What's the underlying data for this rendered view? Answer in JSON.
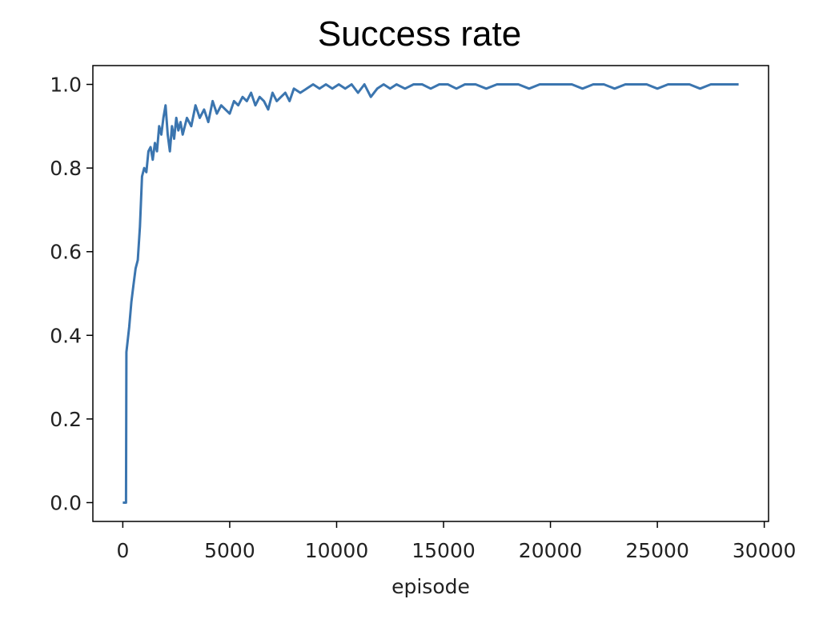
{
  "chart_data": {
    "type": "line",
    "title": "Success rate",
    "xlabel": "episode",
    "ylabel": "",
    "xlim": [
      -1400,
      30200
    ],
    "ylim": [
      -0.045,
      1.045
    ],
    "xticks": [
      0,
      5000,
      10000,
      15000,
      20000,
      25000,
      30000
    ],
    "xtick_labels": [
      "0",
      "5000",
      "10000",
      "15000",
      "20000",
      "25000",
      "30000"
    ],
    "yticks": [
      0.0,
      0.2,
      0.4,
      0.6,
      0.8,
      1.0
    ],
    "ytick_labels": [
      "0.0",
      "0.2",
      "0.4",
      "0.6",
      "0.8",
      "1.0"
    ],
    "grid": false,
    "series": [
      {
        "color": "#3b75af",
        "x": [
          0,
          150,
          170,
          300,
          400,
          500,
          600,
          700,
          800,
          900,
          1000,
          1100,
          1200,
          1300,
          1400,
          1500,
          1600,
          1700,
          1800,
          1900,
          2000,
          2100,
          2200,
          2300,
          2400,
          2500,
          2600,
          2700,
          2800,
          3000,
          3200,
          3400,
          3600,
          3800,
          4000,
          4200,
          4400,
          4600,
          4800,
          5000,
          5200,
          5400,
          5600,
          5800,
          6000,
          6200,
          6400,
          6600,
          6800,
          7000,
          7200,
          7400,
          7600,
          7800,
          8000,
          8300,
          8600,
          8900,
          9200,
          9500,
          9800,
          10100,
          10400,
          10700,
          11000,
          11300,
          11600,
          11900,
          12200,
          12500,
          12800,
          13200,
          13600,
          14000,
          14400,
          14800,
          15200,
          15600,
          16000,
          16500,
          17000,
          17500,
          18000,
          18500,
          19000,
          19500,
          20000,
          20500,
          21000,
          21500,
          22000,
          22500,
          23000,
          23500,
          24000,
          24500,
          25000,
          25500,
          26000,
          26500,
          27000,
          27500,
          28000,
          28400,
          28800
        ],
        "y": [
          0.0,
          0.0,
          0.36,
          0.42,
          0.48,
          0.52,
          0.56,
          0.58,
          0.66,
          0.78,
          0.8,
          0.79,
          0.84,
          0.85,
          0.82,
          0.86,
          0.84,
          0.9,
          0.88,
          0.92,
          0.95,
          0.88,
          0.84,
          0.9,
          0.87,
          0.92,
          0.89,
          0.91,
          0.88,
          0.92,
          0.9,
          0.95,
          0.92,
          0.94,
          0.91,
          0.96,
          0.93,
          0.95,
          0.94,
          0.93,
          0.96,
          0.95,
          0.97,
          0.96,
          0.98,
          0.95,
          0.97,
          0.96,
          0.94,
          0.98,
          0.96,
          0.97,
          0.98,
          0.96,
          0.99,
          0.98,
          0.99,
          1.0,
          0.99,
          1.0,
          0.99,
          1.0,
          0.99,
          1.0,
          0.98,
          1.0,
          0.97,
          0.99,
          1.0,
          0.99,
          1.0,
          0.99,
          1.0,
          1.0,
          0.99,
          1.0,
          1.0,
          0.99,
          1.0,
          1.0,
          0.99,
          1.0,
          1.0,
          1.0,
          0.99,
          1.0,
          1.0,
          1.0,
          1.0,
          0.99,
          1.0,
          1.0,
          0.99,
          1.0,
          1.0,
          1.0,
          0.99,
          1.0,
          1.0,
          1.0,
          0.99,
          1.0,
          1.0,
          1.0,
          1.0
        ]
      }
    ]
  }
}
